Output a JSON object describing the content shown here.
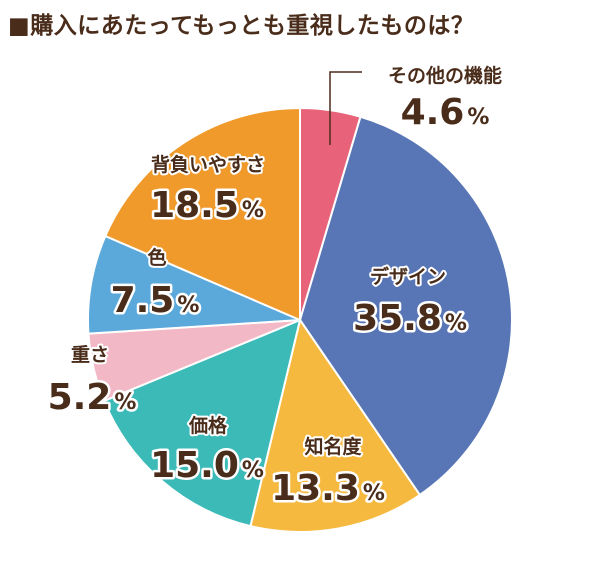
{
  "chart_data": {
    "type": "pie",
    "title": "■購入にあたってもっとも重視したものは？",
    "slices": [
      {
        "label": "その他の機能",
        "value": 4.6,
        "display": "4.6",
        "color": "#e8637a"
      },
      {
        "label": "デザイン",
        "value": 35.8,
        "display": "35.8",
        "color": "#5876b6"
      },
      {
        "label": "知名度",
        "value": 13.3,
        "display": "13.3",
        "color": "#f6b93f"
      },
      {
        "label": "価格",
        "value": 15.0,
        "display": "15.0",
        "color": "#3bbab8"
      },
      {
        "label": "重さ",
        "value": 5.2,
        "display": "5.2",
        "color": "#f3b8c6"
      },
      {
        "label": "色",
        "value": 7.5,
        "display": "7.5",
        "color": "#5ba8da"
      },
      {
        "label": "背負いやすさ",
        "value": 18.5,
        "display": "18.5",
        "color": "#f09a2c"
      }
    ],
    "unit": "%",
    "start_angle": "12 o'clock",
    "direction": "clockwise",
    "legend": "none"
  }
}
